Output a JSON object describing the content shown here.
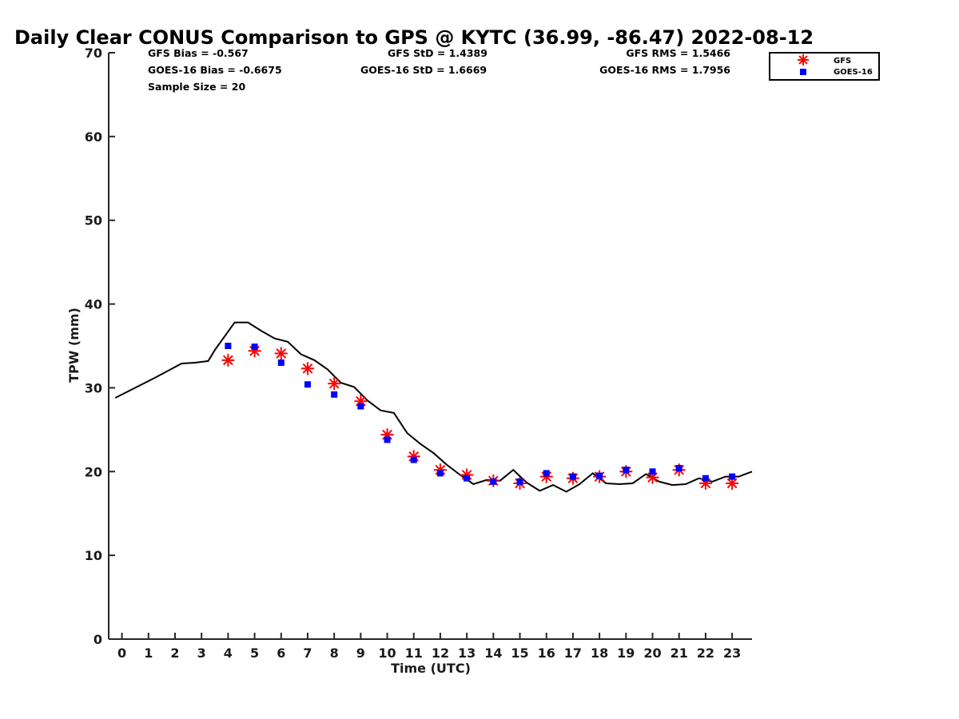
{
  "chart_data": {
    "type": "line",
    "title": "Daily Clear CONUS Comparison to GPS @ KYTC (36.99, -86.47) 2022-08-12",
    "xlabel": "Time (UTC)",
    "ylabel": "TPW (mm)",
    "xlim": [
      -0.5,
      23.75
    ],
    "ylim": [
      0,
      70
    ],
    "xticks": [
      0,
      1,
      2,
      3,
      4,
      5,
      6,
      7,
      8,
      9,
      10,
      11,
      12,
      13,
      14,
      15,
      16,
      17,
      18,
      19,
      20,
      21,
      22,
      23
    ],
    "yticks": [
      0,
      10,
      20,
      30,
      40,
      50,
      60,
      70
    ],
    "grid": false,
    "legend_position": "top-right",
    "stats": {
      "gfs_bias": "GFS Bias = -0.567",
      "goes_bias": "GOES-16 Bias = -0.6675",
      "sample_size": "Sample Size = 20",
      "gfs_std": "GFS StD = 1.4389",
      "goes_std": "GOES-16 StD = 1.6669",
      "gfs_rms": "GFS RMS = 1.5466",
      "goes_rms": "GOES-16 RMS = 1.7956"
    },
    "series": [
      {
        "kind": "line",
        "color": "#000000",
        "x": [
          -0.25,
          0.5,
          1.25,
          2.25,
          2.75,
          3.25,
          3.5,
          4.25,
          4.75,
          5.25,
          5.75,
          6.25,
          6.75,
          7.25,
          7.75,
          8.25,
          8.75,
          9.25,
          9.75,
          10.25,
          10.75,
          11.25,
          11.75,
          12.25,
          12.75,
          13.25,
          13.75,
          14.25,
          14.75,
          15.25,
          15.75,
          16.25,
          16.75,
          17.25,
          17.75,
          18.25,
          18.75,
          19.25,
          19.75,
          20.25,
          20.75,
          21.25,
          21.75,
          22.25,
          22.75,
          23.25,
          23.75
        ],
        "y": [
          28.8,
          30.0,
          31.2,
          32.9,
          33.0,
          33.2,
          34.5,
          37.8,
          37.8,
          36.8,
          35.9,
          35.5,
          34.0,
          33.3,
          32.2,
          30.6,
          30.1,
          28.5,
          27.3,
          27.0,
          24.6,
          23.3,
          22.2,
          20.8,
          19.6,
          18.5,
          19.0,
          18.9,
          20.2,
          18.7,
          17.7,
          18.4,
          17.6,
          18.5,
          19.8,
          18.6,
          18.5,
          18.6,
          19.7,
          18.8,
          18.4,
          18.5,
          19.2,
          18.8,
          19.4,
          19.4,
          20.0
        ]
      },
      {
        "name": "GFS",
        "kind": "asterisk",
        "color": "#ff0000",
        "x": [
          4,
          5,
          6,
          7,
          8,
          9,
          10,
          11,
          12,
          13,
          14,
          15,
          16,
          17,
          18,
          19,
          20,
          21,
          22,
          23
        ],
        "y": [
          33.3,
          34.4,
          34.1,
          32.3,
          30.5,
          28.4,
          24.4,
          21.8,
          20.2,
          19.6,
          18.9,
          18.6,
          19.4,
          19.2,
          19.4,
          20.0,
          19.3,
          20.2,
          18.6,
          18.6
        ]
      },
      {
        "name": "GOES-16",
        "kind": "square",
        "color": "#0000ff",
        "x": [
          4,
          5,
          6,
          7,
          8,
          9,
          10,
          11,
          12,
          13,
          14,
          15,
          16,
          17,
          18,
          19,
          20,
          21,
          22,
          23
        ],
        "y": [
          35.0,
          34.9,
          33.0,
          30.4,
          29.2,
          27.8,
          23.8,
          21.4,
          19.8,
          19.2,
          18.8,
          18.8,
          19.8,
          19.4,
          19.5,
          20.2,
          20.0,
          20.4,
          19.2,
          19.4
        ]
      }
    ]
  }
}
